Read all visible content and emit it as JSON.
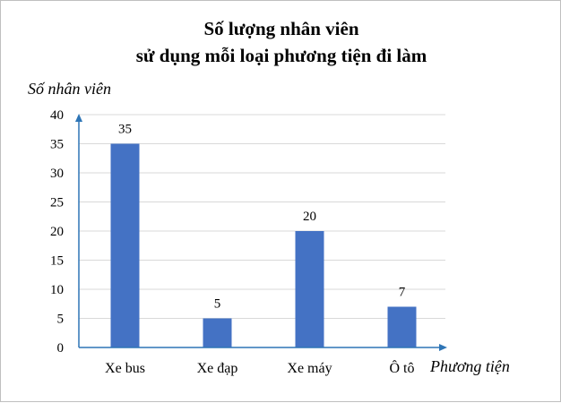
{
  "chart_data": {
    "type": "bar",
    "title_line1": "Số lượng nhân viên",
    "title_line2": "sử dụng mỗi loại phương tiện đi làm",
    "ylabel": "Số nhân viên",
    "xlabel": "Phương tiện",
    "categories": [
      "Xe bus",
      "Xe đạp",
      "Xe máy",
      "Ô tô"
    ],
    "values": [
      35,
      5,
      20,
      7
    ],
    "ylim": [
      0,
      40
    ],
    "yticks": [
      0,
      5,
      10,
      15,
      20,
      25,
      30,
      35,
      40
    ],
    "grid": true,
    "data_labels": true,
    "bar_color": "#4472c4",
    "axis_color": "#2e75b6",
    "grid_color": "#d9d9d9"
  }
}
